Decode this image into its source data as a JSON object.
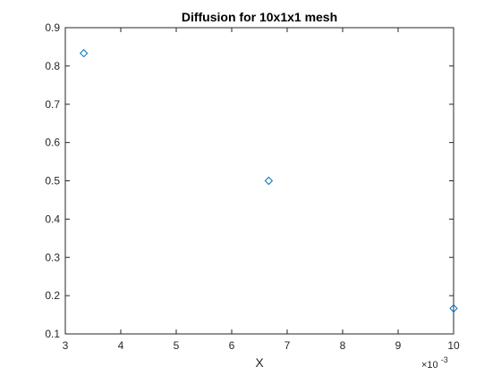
{
  "chart_data": {
    "type": "scatter",
    "title": "Diffusion for 10x1x1 mesh",
    "xlabel": "X",
    "ylabel": "",
    "x_exponent_base": "×10",
    "x_exponent_power": "-3",
    "x_display": [
      3.333,
      6.667,
      10.0
    ],
    "y": [
      0.8333,
      0.5,
      0.1667
    ],
    "xlim_display": [
      3,
      10
    ],
    "ylim": [
      0.1,
      0.9
    ],
    "x_ticks": [
      "3",
      "4",
      "5",
      "6",
      "7",
      "8",
      "9",
      "10"
    ],
    "y_ticks": [
      "0.1",
      "0.2",
      "0.3",
      "0.4",
      "0.5",
      "0.6",
      "0.7",
      "0.8",
      "0.9"
    ],
    "marker": "diamond",
    "marker_color": "#0072bd",
    "grid": false,
    "box": true
  }
}
